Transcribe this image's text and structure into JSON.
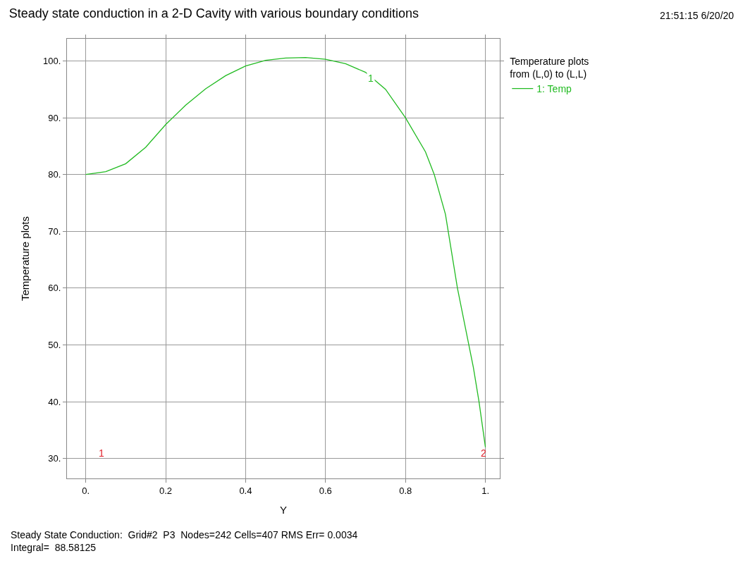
{
  "chart_data": {
    "type": "line",
    "title": "Steady state conduction in a 2-D Cavity with various boundary conditions",
    "xlabel": "Y",
    "ylabel": "Temperature plots",
    "legend_title": "Temperature plots\nfrom (L,0) to (L,L)",
    "legend": "top right",
    "x": [
      0,
      0.05,
      0.1,
      0.15,
      0.2,
      0.25,
      0.3,
      0.35,
      0.4,
      0.45,
      0.5,
      0.55,
      0.6,
      0.65,
      0.7,
      0.75,
      0.8,
      0.85,
      0.872,
      0.9,
      0.93,
      0.95,
      0.97,
      0.984,
      1.0
    ],
    "series": [
      {
        "name": "1: Temp",
        "color": "#22bb22",
        "values": [
          80,
          80.5,
          81.9,
          84.8,
          88.8,
          92.2,
          95.1,
          97.4,
          99.1,
          100.1,
          100.5,
          100.6,
          100.3,
          99.5,
          98,
          95,
          90,
          84,
          80,
          73,
          60,
          53,
          46,
          40,
          32
        ]
      }
    ],
    "xlim": [
      -0.047,
      1.036
    ],
    "ylim": [
      26.5,
      103.9
    ],
    "xticks": [
      {
        "value": 0,
        "label": "0."
      },
      0.2,
      0.4,
      0.6,
      0.8,
      {
        "value": 1,
        "label": "1."
      }
    ],
    "yticks": [
      {
        "value": 30,
        "label": "30."
      },
      {
        "value": 40,
        "label": "40."
      },
      {
        "value": 50,
        "label": "50."
      },
      {
        "value": 60,
        "label": "60."
      },
      {
        "value": 70,
        "label": "70."
      },
      {
        "value": 80,
        "label": "80."
      },
      {
        "value": 90,
        "label": "90."
      },
      {
        "value": 100,
        "label": "100."
      }
    ],
    "grid": true,
    "marker": "none",
    "line_style": "solid",
    "annotations": [
      {
        "text": "1",
        "x": 0.72,
        "y": 97
      },
      "1",
      "2",
      "21:51:15 6/20/20",
      "Steady State Conduction:  Grid#2  P3  Nodes=242 Cells=407 RMS Err= 0.0034\nIntegral=  88.58125"
    ]
  }
}
